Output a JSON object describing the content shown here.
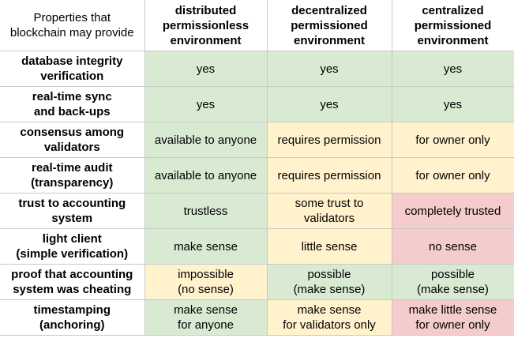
{
  "table": {
    "header": [
      "Properties that\nblockchain may provide",
      "distributed\npermissionless\nenvironment",
      "decentralized\npermissioned\nenvironment",
      "centralized\npermissioned\nenvironment"
    ],
    "rows": [
      [
        "database integrity\nverification",
        {
          "text": "yes",
          "color": "#d9ead3"
        },
        {
          "text": "yes",
          "color": "#d9ead3"
        },
        {
          "text": "yes",
          "color": "#d9ead3"
        }
      ],
      [
        "real-time sync\nand back-ups",
        {
          "text": "yes",
          "color": "#d9ead3"
        },
        {
          "text": "yes",
          "color": "#d9ead3"
        },
        {
          "text": "yes",
          "color": "#d9ead3"
        }
      ],
      [
        "consensus among\nvalidators",
        {
          "text": "available to anyone",
          "color": "#d9ead3"
        },
        {
          "text": "requires permission",
          "color": "#fff2cc"
        },
        {
          "text": "for owner only",
          "color": "#fff2cc"
        }
      ],
      [
        "real-time audit\n(transparency)",
        {
          "text": "available to anyone",
          "color": "#d9ead3"
        },
        {
          "text": "requires permission",
          "color": "#fff2cc"
        },
        {
          "text": "for owner only",
          "color": "#fff2cc"
        }
      ],
      [
        "trust to accounting\nsystem",
        {
          "text": "trustless",
          "color": "#d9ead3"
        },
        {
          "text": "some trust to\nvalidators",
          "color": "#fff2cc"
        },
        {
          "text": "completely trusted",
          "color": "#f4cccc"
        }
      ],
      [
        "light client\n(simple verification)",
        {
          "text": "make sense",
          "color": "#d9ead3"
        },
        {
          "text": "little sense",
          "color": "#fff2cc"
        },
        {
          "text": "no sense",
          "color": "#f4cccc"
        }
      ],
      [
        "proof that accounting\nsystem was cheating",
        {
          "text": "impossible\n(no sense)",
          "color": "#fff2cc"
        },
        {
          "text": "possible\n(make sense)",
          "color": "#d9ead3"
        },
        {
          "text": "possible\n(make sense)",
          "color": "#d9ead3"
        }
      ],
      [
        "timestamping\n(anchoring)",
        {
          "text": "make sense\nfor anyone",
          "color": "#d9ead3"
        },
        {
          "text": "make sense\nfor validators only",
          "color": "#fff2cc"
        },
        {
          "text": "make little sense\nfor owner only",
          "color": "#f4cccc"
        }
      ]
    ]
  }
}
